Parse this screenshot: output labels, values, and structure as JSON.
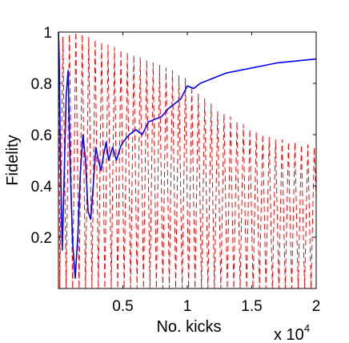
{
  "chart_data": {
    "type": "line",
    "xlabel": "No. kicks",
    "ylabel": "Fidelity",
    "x_multiplier": "x 10",
    "x_multiplier_exponent": "4",
    "xlim": [
      0,
      20000
    ],
    "ylim": [
      0,
      1
    ],
    "x_ticks": [
      5000,
      10000,
      15000,
      20000
    ],
    "x_tick_labels": [
      "0.5",
      "1",
      "1.5",
      "2"
    ],
    "y_ticks": [
      0.2,
      0.4,
      0.6,
      0.8,
      1.0
    ],
    "y_tick_labels": [
      "0.2",
      "0.4",
      "0.6",
      "0.8",
      "1"
    ],
    "grid": false,
    "legend": "none",
    "series": [
      {
        "color": "#0000ff",
        "line_style": "solid",
        "x": [
          0,
          60,
          150,
          300,
          450,
          600,
          750,
          900,
          1100,
          1300,
          1500,
          1700,
          1900,
          2100,
          2300,
          2500,
          2700,
          2900,
          3100,
          3300,
          3500,
          3700,
          3900,
          4200,
          4500,
          4800,
          5000,
          5500,
          6000,
          6500,
          7000,
          7500,
          8000,
          8500,
          9000,
          9500,
          10000,
          10500,
          11000,
          12000,
          13000,
          14000,
          15000,
          16000,
          17000,
          18000,
          19000,
          20000
        ],
        "y": [
          1.0,
          0.9,
          0.5,
          0.15,
          0.45,
          0.75,
          0.85,
          0.5,
          0.18,
          0.04,
          0.2,
          0.45,
          0.6,
          0.5,
          0.3,
          0.27,
          0.4,
          0.55,
          0.5,
          0.46,
          0.52,
          0.57,
          0.5,
          0.55,
          0.5,
          0.55,
          0.57,
          0.6,
          0.62,
          0.6,
          0.65,
          0.66,
          0.67,
          0.7,
          0.72,
          0.74,
          0.79,
          0.78,
          0.8,
          0.82,
          0.84,
          0.85,
          0.86,
          0.87,
          0.88,
          0.885,
          0.89,
          0.895
        ]
      },
      {
        "color": "#ff0000",
        "line_style": "dashed",
        "x": [
          0,
          50,
          100,
          350,
          600,
          850,
          1100,
          1350,
          1600,
          1850,
          2100,
          2350,
          2600,
          2850,
          3100,
          3350,
          3600,
          3850,
          4100,
          4350,
          4600,
          4850,
          5100,
          5350,
          5600,
          5850,
          6100,
          6350,
          6600,
          6850,
          7100,
          7350,
          7600,
          7850,
          8100,
          8350,
          8600,
          8850,
          9100,
          9350,
          9600,
          9850,
          10100,
          10350,
          10600,
          10850,
          11100,
          11350,
          11600,
          11850,
          12100,
          12350,
          12600,
          12850,
          13100,
          13350,
          13600,
          13850,
          14100,
          14350,
          14600,
          14850,
          15100,
          15350,
          15600,
          15850,
          16100,
          16350,
          16600,
          16850,
          17100,
          17350,
          17600,
          17850,
          18100,
          18350,
          18600,
          18850,
          19100,
          19350,
          19600,
          19850,
          20000
        ],
        "y": [
          1.0,
          0.97,
          0.0,
          0.98,
          0.0,
          0.99,
          0.0,
          1.0,
          0.0,
          0.99,
          0.0,
          0.98,
          0.0,
          0.97,
          0.0,
          0.96,
          0.0,
          0.95,
          0.0,
          0.94,
          0.0,
          0.93,
          0.0,
          0.92,
          0.0,
          0.91,
          0.0,
          0.9,
          0.0,
          0.89,
          0.0,
          0.88,
          0.0,
          0.87,
          0.0,
          0.86,
          0.0,
          0.85,
          0.0,
          0.83,
          0.0,
          0.82,
          0.0,
          0.79,
          0.0,
          0.76,
          0.0,
          0.74,
          0.0,
          0.72,
          0.0,
          0.69,
          0.0,
          0.68,
          0.0,
          0.67,
          0.0,
          0.65,
          0.0,
          0.64,
          0.0,
          0.62,
          0.0,
          0.61,
          0.0,
          0.6,
          0.0,
          0.59,
          0.0,
          0.58,
          0.0,
          0.58,
          0.0,
          0.57,
          0.0,
          0.57,
          0.0,
          0.56,
          0.0,
          0.56,
          0.0,
          0.55,
          0.35
        ]
      }
    ]
  }
}
